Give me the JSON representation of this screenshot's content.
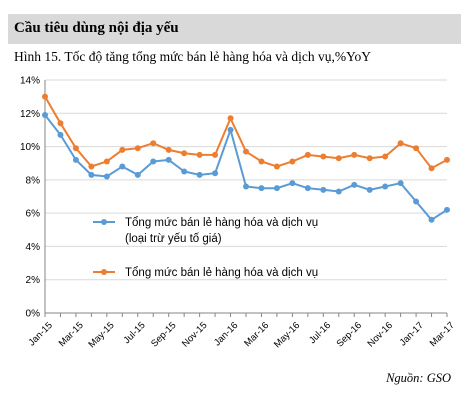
{
  "section_title": "Cầu tiêu dùng nội địa yếu",
  "figure_caption": "Hình 15. Tốc độ tăng tổng mức bán lẻ hàng hóa và dịch vụ,%YoY",
  "source": "Nguồn: GSO",
  "colors": {
    "series1": "#5b9bd5",
    "series2": "#ed7d31",
    "grid": "#d9d9d9",
    "axis": "#868686",
    "header_bg": "#d9d9d9"
  },
  "chart_data": {
    "type": "line",
    "title": "",
    "xlabel": "",
    "ylabel": "",
    "ylim": [
      0,
      14
    ],
    "y_ticks": [
      "0%",
      "2%",
      "4%",
      "6%",
      "8%",
      "10%",
      "12%",
      "14%"
    ],
    "grid": true,
    "legend_position": "bottom-left, inside plot",
    "x": [
      "Jan-15",
      "Feb-15",
      "Mar-15",
      "Apr-15",
      "May-15",
      "Jun-15",
      "Jul-15",
      "Aug-15",
      "Sep-15",
      "Oct-15",
      "Nov-15",
      "Dec-15",
      "Jan-16",
      "Feb-16",
      "Mar-16",
      "Apr-16",
      "May-16",
      "Jun-16",
      "Jul-16",
      "Aug-16",
      "Sep-16",
      "Oct-16",
      "Nov-16",
      "Dec-16",
      "Jan-17",
      "Feb-17",
      "Mar-17"
    ],
    "x_tick_labels": [
      "Jan-15",
      "Mar-15",
      "May-15",
      "Jul-15",
      "Sep-15",
      "Nov-15",
      "Jan-16",
      "Mar-16",
      "May-16",
      "Jul-16",
      "Sep-16",
      "Nov-16",
      "Jan-17",
      "Mar-17"
    ],
    "series": [
      {
        "name": "Tổng mức bán lẻ hàng hóa và dịch vụ (loại trừ yếu tố giá)",
        "legend_lines": [
          "Tổng mức bán lẻ hàng hóa và dịch vụ",
          "(loại trừ yếu tố giá)"
        ],
        "values": [
          11.9,
          10.7,
          9.2,
          8.3,
          8.2,
          8.8,
          8.3,
          9.1,
          9.2,
          8.5,
          8.3,
          8.4,
          11.0,
          7.6,
          7.5,
          7.5,
          7.8,
          7.5,
          7.4,
          7.3,
          7.7,
          7.4,
          7.6,
          7.8,
          6.7,
          5.6,
          6.2
        ]
      },
      {
        "name": "Tổng mức bán lẻ hàng hóa và dịch vụ",
        "legend_lines": [
          "Tổng mức bán lẻ hàng hóa và dịch vụ"
        ],
        "values": [
          13.0,
          11.4,
          9.9,
          8.8,
          9.1,
          9.8,
          9.9,
          10.2,
          9.8,
          9.6,
          9.5,
          9.5,
          11.7,
          9.7,
          9.1,
          8.8,
          9.1,
          9.5,
          9.4,
          9.3,
          9.5,
          9.3,
          9.4,
          10.2,
          9.9,
          8.7,
          9.2
        ]
      }
    ]
  }
}
